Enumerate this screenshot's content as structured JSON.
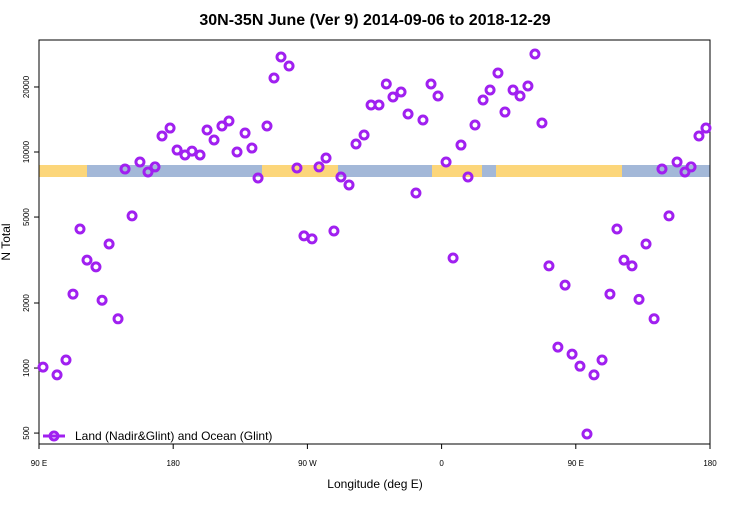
{
  "chart_data": {
    "type": "scatter",
    "title": "30N-35N June (Ver 9)   2014-09-06 to 2018-12-29",
    "x_label": "Longitude (deg E)",
    "y_label": "N Total",
    "xlim": [
      90,
      540
    ],
    "xticks": [
      {
        "value": 90,
        "label": "90 E"
      },
      {
        "value": 180,
        "label": "180"
      },
      {
        "value": 270,
        "label": "90 W"
      },
      {
        "value": 360,
        "label": "0"
      },
      {
        "value": 450,
        "label": "90 E"
      },
      {
        "value": 540,
        "label": "180"
      }
    ],
    "ylim": [
      445,
      33000
    ],
    "yticks": [
      500,
      1000,
      2000,
      5000,
      10000,
      20000
    ],
    "log_y": true,
    "grid": false,
    "legend": "bottom-left",
    "series": [
      {
        "name": "Land (Nadir&Glint) and Ocean (Glint)",
        "color": "#a020f0",
        "x": [
          92.7,
          102.1,
          108.1,
          112.8,
          117.5,
          122.2,
          128.2,
          132.3,
          137,
          143,
          147.7,
          152.4,
          157.7,
          163.1,
          167.8,
          172.5,
          177.9,
          182.6,
          187.9,
          192.6,
          198,
          202.7,
          207.4,
          212.7,
          217.4,
          222.8,
          228.2,
          232.8,
          236.9,
          242.9,
          247.6,
          252.3,
          257.7,
          263,
          267.7,
          273.1,
          277.8,
          282.5,
          287.8,
          292.5,
          297.9,
          302.6,
          308,
          312.7,
          318,
          322.9,
          327.4,
          332.8,
          337.5,
          342.8,
          347.5,
          352.9,
          357.6,
          363,
          367.7,
          373,
          377.7,
          382.4,
          387.8,
          392.5,
          397.8,
          402.5,
          407.9,
          412.6,
          417.9,
          422.6,
          427.3,
          432,
          438,
          442.8,
          447.5,
          452.8,
          457.5,
          462.2,
          467.6,
          472.9,
          477.6,
          482.3,
          487.7,
          492.4,
          497.1,
          502.5,
          507.8,
          512.5,
          517.9,
          523.2,
          527.3,
          532.6,
          537.3
        ],
        "values": [
          1010,
          930,
          1090,
          2200,
          4400,
          3160,
          2940,
          2060,
          3750,
          1690,
          8340,
          5060,
          8990,
          8080,
          8530,
          11860,
          12910,
          10210,
          9690,
          10100,
          9690,
          12640,
          11370,
          13190,
          13920,
          10000,
          12240,
          10430,
          7580,
          13190,
          22000,
          27530,
          25000,
          8430,
          4090,
          3960,
          8530,
          9380,
          4310,
          7660,
          7040,
          10890,
          11990,
          16510,
          16510,
          20640,
          17980,
          18960,
          14990,
          6460,
          14070,
          20640,
          18170,
          8990,
          3230,
          10770,
          7660,
          13330,
          17410,
          19370,
          23220,
          15310,
          19370,
          18170,
          20210,
          28430,
          13620,
          2970,
          1250,
          2420,
          1160,
          1020,
          495,
          930,
          1090,
          2200,
          4400,
          3160,
          2970,
          2080,
          3750,
          1690,
          8340,
          5060,
          8990,
          8080,
          8530,
          11860,
          12910
        ]
      }
    ]
  }
}
